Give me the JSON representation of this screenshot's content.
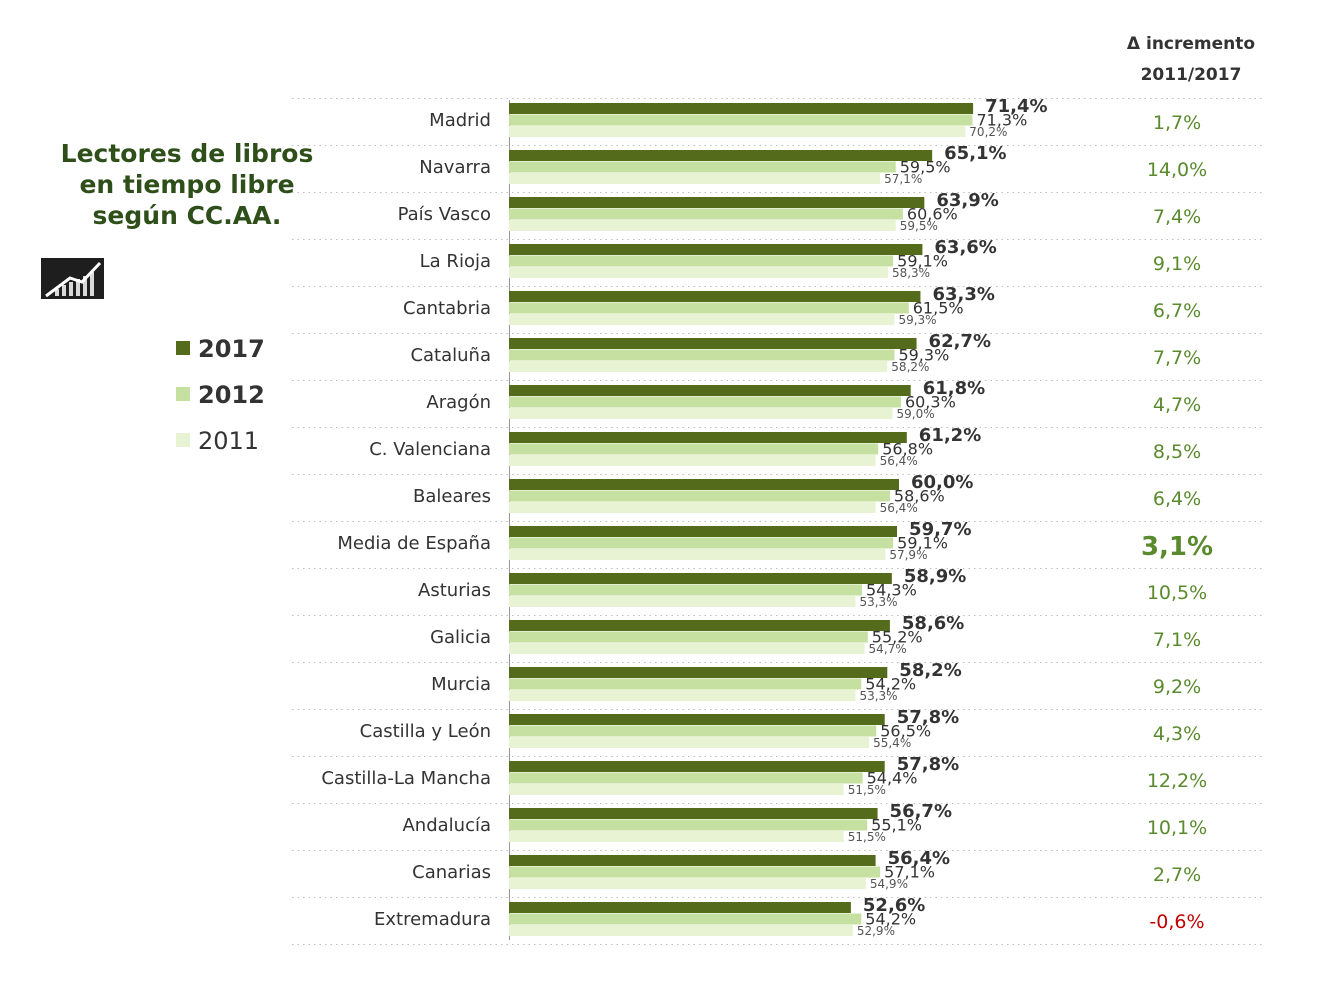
{
  "chart_data": {
    "type": "bar",
    "orientation": "horizontal",
    "title_lines": [
      "Lectores de libros",
      "en tiempo libre",
      "según CC.AA."
    ],
    "categories": [
      "Madrid",
      "Navarra",
      "País Vasco",
      "La Rioja",
      "Cantabria",
      "Cataluña",
      "Aragón",
      "C. Valenciana",
      "Baleares",
      "Media de España",
      "Asturias",
      "Galicia",
      "Murcia",
      "Castilla y León",
      "Castilla-La Mancha",
      "Andalucía",
      "Canarias",
      "Extremadura"
    ],
    "series": [
      {
        "name": "2017",
        "color": "#536b1b",
        "values": [
          71.4,
          65.1,
          63.9,
          63.6,
          63.3,
          62.7,
          61.8,
          61.2,
          60.0,
          59.7,
          58.9,
          58.6,
          58.2,
          57.8,
          57.8,
          56.7,
          56.4,
          52.6
        ],
        "labels": [
          "71,4%",
          "65,1%",
          "63,9%",
          "63,6%",
          "63,3%",
          "62,7%",
          "61,8%",
          "61,2%",
          "60,0%",
          "59,7%",
          "58,9%",
          "58,6%",
          "58,2%",
          "57,8%",
          "57,8%",
          "56,7%",
          "56,4%",
          "52,6%"
        ]
      },
      {
        "name": "2012",
        "color": "#c5e0a0",
        "values": [
          71.3,
          59.5,
          60.6,
          59.1,
          61.5,
          59.3,
          60.3,
          56.8,
          58.6,
          59.1,
          54.3,
          55.2,
          54.2,
          56.5,
          54.4,
          55.1,
          57.1,
          54.2
        ],
        "labels": [
          "71,3%",
          "59,5%",
          "60,6%",
          "59,1%",
          "61,5%",
          "59,3%",
          "60,3%",
          "56,8%",
          "58,6%",
          "59,1%",
          "54,3%",
          "55,2%",
          "54,2%",
          "56,5%",
          "54,4%",
          "55,1%",
          "57,1%",
          "54,2%"
        ]
      },
      {
        "name": "2011",
        "color": "#e8f3d3",
        "values": [
          70.2,
          57.1,
          59.5,
          58.3,
          59.3,
          58.2,
          59.0,
          56.4,
          56.4,
          57.9,
          53.3,
          54.7,
          53.3,
          55.4,
          51.5,
          51.5,
          54.9,
          52.9
        ],
        "labels": [
          "70,2%",
          "57,1%",
          "59,5%",
          "58,3%",
          "59,3%",
          "58,2%",
          "59,0%",
          "56,4%",
          "56,4%",
          "57,9%",
          "53,3%",
          "54,7%",
          "53,3%",
          "55,4%",
          "51,5%",
          "51,5%",
          "54,9%",
          "52,9%"
        ]
      }
    ],
    "increment_header": [
      "Δ incremento",
      "2011/2017"
    ],
    "increments": [
      "1,7%",
      "14,0%",
      "7,4%",
      "9,1%",
      "6,7%",
      "7,7%",
      "4,7%",
      "8,5%",
      "6,4%",
      "3,1%",
      "10,5%",
      "7,1%",
      "9,2%",
      "4,3%",
      "12,2%",
      "10,1%",
      "2,7%",
      "-0,6%"
    ],
    "increment_values": [
      1.7,
      14.0,
      7.4,
      9.1,
      6.7,
      7.7,
      4.7,
      8.5,
      6.4,
      3.1,
      10.5,
      7.1,
      9.2,
      4.3,
      12.2,
      10.1,
      2.7,
      -0.6
    ],
    "highlight_category": "Media de España",
    "legend": [
      "2017",
      "2012",
      "2011"
    ],
    "legend_placement": "left",
    "grid": "dotted row separators",
    "colors": {
      "positive_increment": "#5a8a2e",
      "negative_increment": "#c00000",
      "title": "#2f4f1a"
    },
    "icon": "bar-chart-growth-icon"
  }
}
